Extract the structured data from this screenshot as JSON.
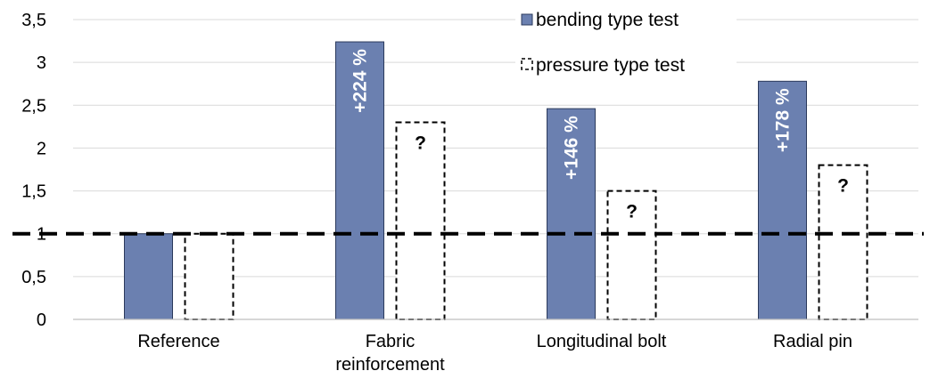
{
  "chart_data": {
    "type": "bar",
    "categories": [
      [
        "Reference"
      ],
      [
        "Fabric",
        "reinforcement"
      ],
      [
        "Longitudinal bolt"
      ],
      [
        "Radial pin"
      ]
    ],
    "series": [
      {
        "name": "bending type test",
        "values": [
          1.0,
          3.24,
          2.46,
          2.78
        ],
        "labels": [
          "",
          "+224 %",
          "+146 %",
          "+178 %"
        ],
        "color": "#6b80b0"
      },
      {
        "name": "pressure type test",
        "values": [
          1.0,
          2.3,
          1.5,
          1.8
        ],
        "labels": [
          "",
          "?",
          "?",
          "?"
        ],
        "style": "dashed-outline"
      }
    ],
    "y_ticks": [
      "0",
      "0,5",
      "1",
      "1,5",
      "2",
      "2,5",
      "3",
      "3,5"
    ],
    "ylim": [
      0,
      3.5
    ],
    "reference_line": 1,
    "grid": true,
    "legend_position": "top-right"
  }
}
